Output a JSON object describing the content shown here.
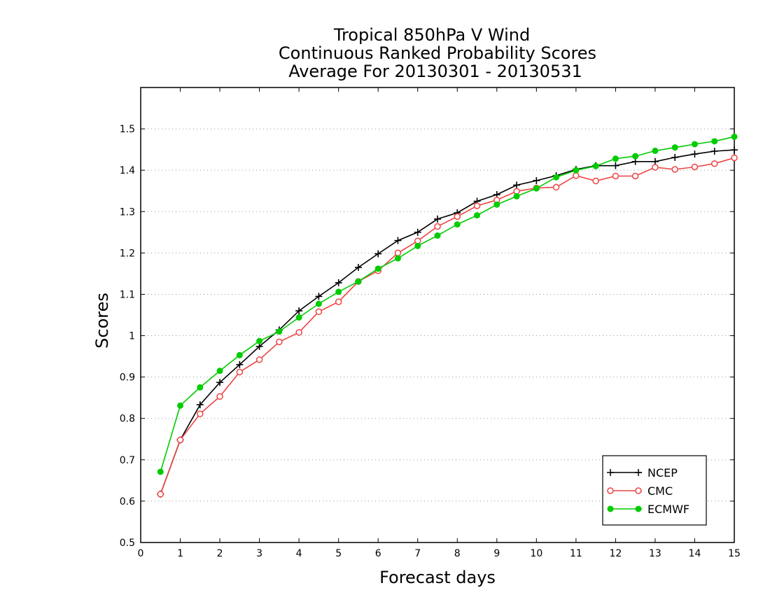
{
  "chart_data": {
    "type": "line",
    "title": [
      "Tropical 850hPa V Wind",
      "Continuous Ranked Probability Scores",
      "Average For 20130301 - 20130531"
    ],
    "xlabel": "Forecast days",
    "ylabel": "Scores",
    "xlim": [
      0,
      15
    ],
    "ylim": [
      0.5,
      1.6
    ],
    "xticks": [
      0,
      1,
      2,
      3,
      4,
      5,
      6,
      7,
      8,
      9,
      10,
      11,
      12,
      13,
      14,
      15
    ],
    "yticks": [
      0.5,
      0.6,
      0.7,
      0.8,
      0.9,
      1,
      1.1,
      1.2,
      1.3,
      1.4,
      1.5
    ],
    "ytick_labels": [
      "0.5",
      "0.6",
      "0.7",
      "0.8",
      "0.9",
      "1",
      "1.1",
      "1.2",
      "1.3",
      "1.4",
      "1.5"
    ],
    "grid": "horizontal dotted",
    "legend_position": "bottom-right",
    "x": [
      0.5,
      1,
      1.5,
      2,
      2.5,
      3,
      3.5,
      4,
      4.5,
      5,
      5.5,
      6,
      6.5,
      7,
      7.5,
      8,
      8.5,
      9,
      9.5,
      10,
      10.5,
      11,
      11.5,
      12,
      12.5,
      13,
      13.5,
      14,
      14.5,
      15
    ],
    "series": [
      {
        "name": "NCEP",
        "color": "#000000",
        "marker": "plus",
        "values": [
          0.617,
          0.748,
          0.833,
          0.887,
          0.93,
          0.974,
          1.014,
          1.06,
          1.095,
          1.128,
          1.165,
          1.198,
          1.23,
          1.25,
          1.282,
          1.297,
          1.325,
          1.341,
          1.364,
          1.375,
          1.387,
          1.402,
          1.411,
          1.411,
          1.421,
          1.421,
          1.431,
          1.439,
          1.446,
          1.449
        ]
      },
      {
        "name": "CMC",
        "color": "#ee4444",
        "marker": "open-circle",
        "values": [
          0.617,
          0.748,
          0.811,
          0.853,
          0.912,
          0.942,
          0.985,
          1.008,
          1.058,
          1.082,
          1.131,
          1.157,
          1.2,
          1.229,
          1.264,
          1.288,
          1.314,
          1.328,
          1.349,
          1.357,
          1.359,
          1.387,
          1.374,
          1.386,
          1.386,
          1.407,
          1.402,
          1.408,
          1.416,
          1.43
        ]
      },
      {
        "name": "ECMWF",
        "color": "#00cc00",
        "marker": "filled-circle",
        "values": [
          0.671,
          0.831,
          0.875,
          0.915,
          0.953,
          0.987,
          1.01,
          1.044,
          1.077,
          1.106,
          1.131,
          1.162,
          1.187,
          1.217,
          1.242,
          1.269,
          1.291,
          1.317,
          1.337,
          1.356,
          1.383,
          1.4,
          1.41,
          1.428,
          1.434,
          1.447,
          1.455,
          1.463,
          1.47,
          1.481
        ]
      }
    ]
  }
}
